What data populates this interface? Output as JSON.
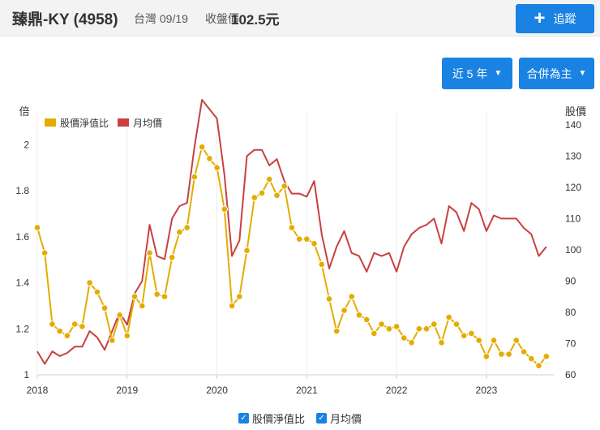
{
  "header": {
    "stock_name": "臻鼎-KY (4958)",
    "exchange_date": "台灣 09/19",
    "close_label": "收盤價",
    "close_price": "102.5元",
    "track_label": "追蹤",
    "track_icon": "plus-icon"
  },
  "controls": {
    "period": "近 5 年",
    "mode": "合併為主"
  },
  "colors": {
    "pb": "#e3ac00",
    "price": "#c94040",
    "button": "#1a82e2"
  },
  "legend": {
    "pb": "股價淨值比",
    "price": "月均價"
  },
  "chart_data": {
    "type": "line",
    "left_axis": {
      "label": "倍",
      "ticks": [
        "1",
        "1.2",
        "1.4",
        "1.6",
        "1.8",
        "2"
      ],
      "range": [
        1,
        2.1
      ]
    },
    "right_axis": {
      "label": "股價",
      "ticks": [
        "60",
        "70",
        "80",
        "90",
        "100",
        "110",
        "120",
        "130",
        "140"
      ],
      "range": [
        60,
        141
      ]
    },
    "x_ticks": [
      "2018",
      "2019",
      "2020",
      "2021",
      "2022",
      "2023"
    ],
    "x_range": [
      2018.0,
      2023.75
    ],
    "legend_position": "top-left",
    "grid": "vertical",
    "series": [
      {
        "name": "股價淨值比",
        "axis": "left",
        "markers": true,
        "x": [
          2018.0,
          2018.083,
          2018.167,
          2018.25,
          2018.333,
          2018.417,
          2018.5,
          2018.583,
          2018.667,
          2018.75,
          2018.833,
          2018.917,
          2019.0,
          2019.083,
          2019.167,
          2019.25,
          2019.333,
          2019.417,
          2019.5,
          2019.583,
          2019.667,
          2019.75,
          2019.833,
          2019.917,
          2020.0,
          2020.083,
          2020.167,
          2020.25,
          2020.333,
          2020.417,
          2020.5,
          2020.583,
          2020.667,
          2020.75,
          2020.833,
          2020.917,
          2021.0,
          2021.083,
          2021.167,
          2021.25,
          2021.333,
          2021.417,
          2021.5,
          2021.583,
          2021.667,
          2021.75,
          2021.833,
          2021.917,
          2022.0,
          2022.083,
          2022.167,
          2022.25,
          2022.333,
          2022.417,
          2022.5,
          2022.583,
          2022.667,
          2022.75,
          2022.833,
          2022.917,
          2023.0,
          2023.083,
          2023.167,
          2023.25,
          2023.333,
          2023.417,
          2023.5,
          2023.583,
          2023.667
        ],
        "values": [
          1.64,
          1.53,
          1.22,
          1.19,
          1.17,
          1.22,
          1.21,
          1.4,
          1.36,
          1.29,
          1.15,
          1.26,
          1.17,
          1.34,
          1.3,
          1.53,
          1.35,
          1.34,
          1.51,
          1.62,
          1.64,
          1.86,
          1.99,
          1.94,
          1.9,
          1.72,
          1.3,
          1.34,
          1.54,
          1.77,
          1.79,
          1.85,
          1.78,
          1.82,
          1.64,
          1.59,
          1.59,
          1.57,
          1.48,
          1.33,
          1.19,
          1.28,
          1.34,
          1.26,
          1.24,
          1.18,
          1.22,
          1.2,
          1.21,
          1.16,
          1.14,
          1.2,
          1.2,
          1.22,
          1.14,
          1.25,
          1.22,
          1.17,
          1.18,
          1.15,
          1.08,
          1.15,
          1.09,
          1.09,
          1.15,
          1.1,
          1.07,
          1.04,
          1.08
        ]
      },
      {
        "name": "月均價",
        "axis": "right",
        "markers": false,
        "x": [
          2018.0,
          2018.083,
          2018.167,
          2018.25,
          2018.333,
          2018.417,
          2018.5,
          2018.583,
          2018.667,
          2018.75,
          2018.833,
          2018.917,
          2019.0,
          2019.083,
          2019.167,
          2019.25,
          2019.333,
          2019.417,
          2019.5,
          2019.583,
          2019.667,
          2019.75,
          2019.833,
          2019.917,
          2020.0,
          2020.083,
          2020.167,
          2020.25,
          2020.333,
          2020.417,
          2020.5,
          2020.583,
          2020.667,
          2020.75,
          2020.833,
          2020.917,
          2021.0,
          2021.083,
          2021.167,
          2021.25,
          2021.333,
          2021.417,
          2021.5,
          2021.583,
          2021.667,
          2021.75,
          2021.833,
          2021.917,
          2022.0,
          2022.083,
          2022.167,
          2022.25,
          2022.333,
          2022.417,
          2022.5,
          2022.583,
          2022.667,
          2022.75,
          2022.833,
          2022.917,
          2023.0,
          2023.083,
          2023.167,
          2023.25,
          2023.333,
          2023.417,
          2023.5,
          2023.583,
          2023.667
        ],
        "values": [
          67.5,
          63.5,
          67.5,
          66,
          67,
          69,
          69,
          74,
          72,
          68,
          74,
          80,
          76,
          86,
          90,
          108,
          98,
          97,
          110,
          114,
          115,
          133,
          148,
          145,
          142,
          124,
          98,
          103,
          130,
          132,
          132,
          127,
          129,
          122,
          118,
          118,
          117,
          122,
          105,
          94,
          101,
          106,
          99,
          98,
          93,
          99,
          98,
          99,
          93,
          101,
          105,
          107,
          108,
          110,
          102,
          114,
          112,
          106,
          115,
          113,
          106,
          111,
          110,
          110,
          110,
          107,
          105,
          98,
          101
        ]
      }
    ]
  }
}
